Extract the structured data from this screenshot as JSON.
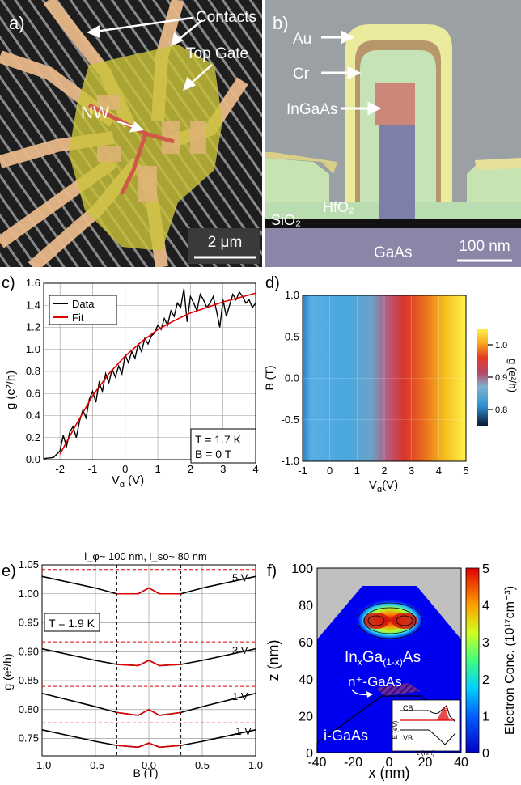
{
  "panel_a": {
    "label": "a)",
    "contacts": "Contacts",
    "top_gate": "Top Gate",
    "nw": "NW",
    "scale": "2 μm"
  },
  "panel_b": {
    "label": "b)",
    "au": "Au",
    "cr": "Cr",
    "ingaas": "InGaAs",
    "hfo2": "HfO₂",
    "sio2": "SiO₂",
    "gaas": "GaAs",
    "scale": "100 nm"
  },
  "panel_c": {
    "label": "c)",
    "legend_data": "Data",
    "legend_fit": "Fit",
    "temp": "T = 1.7 K",
    "field": "B = 0 T",
    "xlabel": "V",
    "xsub": "g",
    "xunit": " (V)",
    "ylabel": "g (e²/h)"
  },
  "panel_d": {
    "label": "d)",
    "ylabel": "B (T)",
    "xlabel": "V",
    "xsub": "g",
    "xunit": "(V)",
    "cbar_label": "g (e²/h)",
    "cbar_ticks": [
      "1.0",
      "0.9",
      "0.8"
    ]
  },
  "panel_e": {
    "label": "e)",
    "title": "l_φ~ 100 nm, l_so~ 80 nm",
    "temp": "T = 1.9 K",
    "xlabel": "B (T)",
    "ylabel": "g (e²/h)",
    "curve_labels": [
      "5 V",
      "3 V",
      "1 V",
      "-1 V"
    ]
  },
  "panel_f": {
    "label": "f)",
    "ylabel": "z (nm)",
    "xlabel": "x (nm)",
    "cbar_label": "Electron Conc. (10¹⁷cm⁻³)",
    "ingaas": "In",
    "ingaas_x": "x",
    "ingaas_ga": "Ga",
    "ingaas_1x": "(1-x)",
    "ingaas_as": "As",
    "n_gaas": "n⁺-GaAs",
    "i_gaas": "i-GaAs",
    "inset_cb": "CB",
    "inset_vb": "VB",
    "inset_e": "e⁻",
    "inset_ylabel": "E (eV)",
    "inset_xlabel": "z (nm)"
  },
  "chart_data": [
    {
      "type": "line",
      "name": "panel c",
      "xlabel": "Vg (V)",
      "ylabel": "g (e²/h)",
      "xlim": [
        -2.5,
        4
      ],
      "ylim": [
        0,
        1.6
      ],
      "xticks": [
        -2,
        -1,
        0,
        1,
        2,
        3,
        4
      ],
      "yticks": [
        0,
        0.2,
        0.4,
        0.6,
        0.8,
        1.0,
        1.2,
        1.4,
        1.6
      ],
      "series": [
        {
          "name": "Data",
          "color": "#000000",
          "x": [
            -2.5,
            -2.2,
            -2.0,
            -1.9,
            -1.8,
            -1.7,
            -1.6,
            -1.5,
            -1.4,
            -1.3,
            -1.2,
            -1.1,
            -1.0,
            -0.9,
            -0.8,
            -0.7,
            -0.6,
            -0.5,
            -0.4,
            -0.3,
            -0.2,
            -0.1,
            0.0,
            0.1,
            0.2,
            0.3,
            0.4,
            0.5,
            0.6,
            0.7,
            0.8,
            0.9,
            1.0,
            1.1,
            1.2,
            1.3,
            1.4,
            1.5,
            1.6,
            1.7,
            1.8,
            1.9,
            2.0,
            2.1,
            2.2,
            2.3,
            2.4,
            2.5,
            2.6,
            2.7,
            2.8,
            2.9,
            3.0,
            3.1,
            3.2,
            3.3,
            3.4,
            3.5,
            3.6,
            3.7,
            3.8,
            3.9,
            4.0
          ],
          "y": [
            0.01,
            0.02,
            0.08,
            0.22,
            0.12,
            0.25,
            0.3,
            0.2,
            0.35,
            0.45,
            0.38,
            0.55,
            0.62,
            0.52,
            0.7,
            0.62,
            0.78,
            0.7,
            0.82,
            0.75,
            0.85,
            0.78,
            0.95,
            0.88,
            0.98,
            0.92,
            1.05,
            0.98,
            1.1,
            1.05,
            1.12,
            1.15,
            1.22,
            1.18,
            1.28,
            1.22,
            1.35,
            1.3,
            1.42,
            1.38,
            1.55,
            1.25,
            1.48,
            1.42,
            1.35,
            1.5,
            1.45,
            1.38,
            1.42,
            1.48,
            1.35,
            1.2,
            1.45,
            1.3,
            1.4,
            1.5,
            1.45,
            1.52,
            1.48,
            1.42,
            1.45,
            1.38,
            1.42
          ]
        },
        {
          "name": "Fit",
          "color": "#e00000",
          "x": [
            -2.0,
            -1.5,
            -1.0,
            -0.5,
            0,
            0.5,
            1.0,
            1.5,
            2.0,
            2.5,
            3.0,
            3.5,
            4.0
          ],
          "y": [
            0.05,
            0.32,
            0.58,
            0.78,
            0.94,
            1.07,
            1.18,
            1.26,
            1.33,
            1.38,
            1.43,
            1.47,
            1.51
          ]
        }
      ]
    },
    {
      "type": "heatmap",
      "name": "panel d",
      "xlabel": "Vg(V)",
      "ylabel": "B (T)",
      "xlim": [
        -1,
        5
      ],
      "ylim": [
        -1,
        1
      ],
      "xticks": [
        -1,
        0,
        1,
        2,
        3,
        4,
        5
      ],
      "yticks": [
        -1.0,
        -0.5,
        0.0,
        0.5,
        1.0
      ],
      "colorbar": {
        "label": "g (e²/h)",
        "ticks": [
          0.8,
          0.9,
          1.0
        ]
      }
    },
    {
      "type": "line",
      "name": "panel e",
      "xlabel": "B (T)",
      "ylabel": "g (e²/h)",
      "xlim": [
        -1,
        1
      ],
      "ylim": [
        0.72,
        1.05
      ],
      "xticks": [
        -1.0,
        -0.5,
        0.0,
        0.5,
        1.0
      ],
      "yticks": [
        0.75,
        0.8,
        0.85,
        0.9,
        0.95,
        1.0,
        1.05
      ],
      "series": [
        {
          "name": "5 V",
          "values_at": [
            -1,
            -0.5,
            -0.3,
            -0.1,
            0,
            0.1,
            0.3,
            0.5,
            1
          ],
          "y": [
            1.03,
            1.01,
            1.0,
            1.0,
            1.01,
            1.0,
            1.0,
            1.01,
            1.03
          ]
        },
        {
          "name": "3 V",
          "values_at": [
            -1,
            -0.5,
            -0.3,
            -0.1,
            0,
            0.1,
            0.3,
            0.5,
            1
          ],
          "y": [
            0.905,
            0.885,
            0.878,
            0.876,
            0.885,
            0.876,
            0.878,
            0.885,
            0.905
          ]
        },
        {
          "name": "1 V",
          "values_at": [
            -1,
            -0.5,
            -0.3,
            -0.1,
            0,
            0.1,
            0.3,
            0.5,
            1
          ],
          "y": [
            0.828,
            0.805,
            0.795,
            0.79,
            0.8,
            0.79,
            0.795,
            0.805,
            0.828
          ]
        },
        {
          "name": "-1 V",
          "values_at": [
            -1,
            -0.5,
            -0.3,
            -0.1,
            0,
            0.1,
            0.3,
            0.5,
            1
          ],
          "y": [
            0.765,
            0.745,
            0.738,
            0.735,
            0.742,
            0.735,
            0.738,
            0.745,
            0.765
          ]
        }
      ]
    },
    {
      "type": "heatmap",
      "name": "panel f",
      "xlabel": "x (nm)",
      "ylabel": "z (nm)",
      "xlim": [
        -40,
        40
      ],
      "ylim": [
        0,
        100
      ],
      "xticks": [
        -40,
        -20,
        0,
        20,
        40
      ],
      "yticks": [
        0,
        20,
        40,
        60,
        80,
        100
      ],
      "colorbar": {
        "label": "Electron Conc. (10¹⁷cm⁻³)",
        "ticks": [
          0,
          1,
          2,
          3,
          4,
          5
        ]
      }
    }
  ]
}
